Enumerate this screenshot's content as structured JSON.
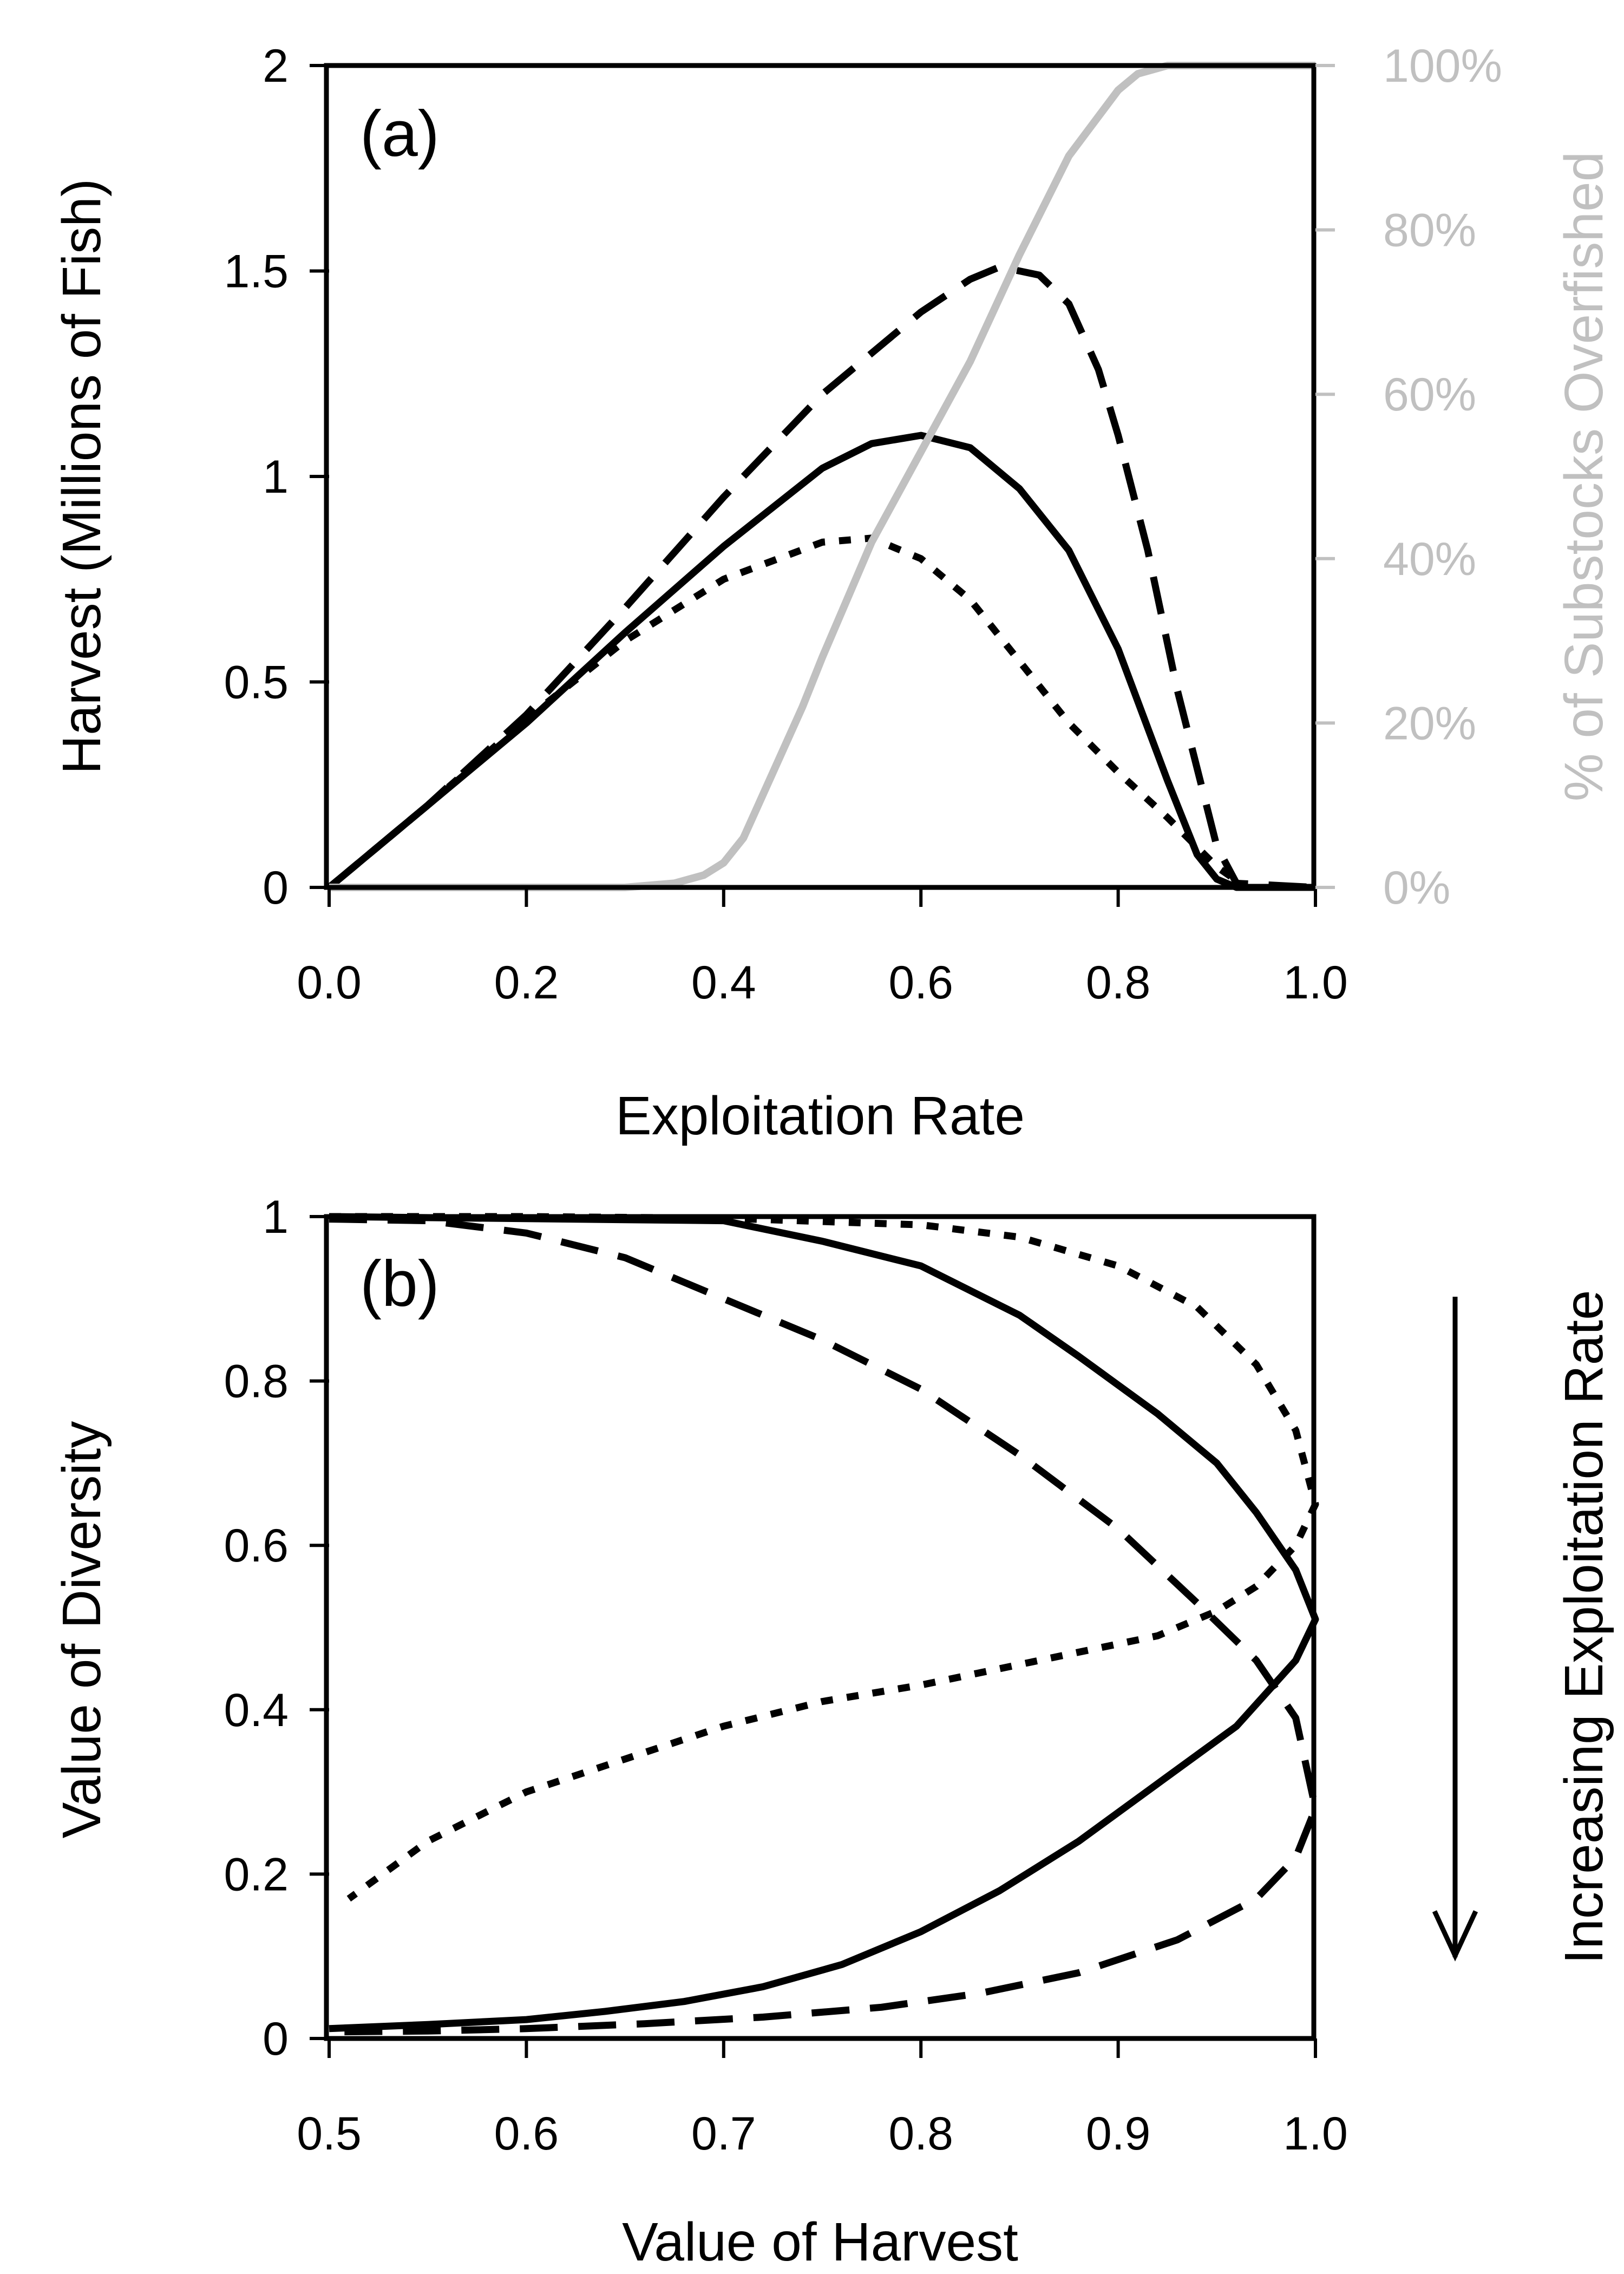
{
  "chart_data": [
    {
      "type": "line",
      "panel_label": "(a)",
      "xlabel": "Exploitation Rate",
      "ylabel": "Harvest (Millions of Fish)",
      "y2label": "% of Substocks Overfished",
      "xlim": [
        0,
        1
      ],
      "ylim": [
        0,
        2
      ],
      "y2lim": [
        0,
        100
      ],
      "x_tick_labels": [
        "0.0",
        "0.2",
        "0.4",
        "0.6",
        "0.8",
        "1.0"
      ],
      "y_tick_labels": [
        "0",
        "0.5",
        "1",
        "1.5",
        "2"
      ],
      "y2_tick_labels": [
        "0%",
        "20%",
        "40%",
        "60%",
        "80%",
        "100%"
      ],
      "grid": false,
      "colors": {
        "harvest": "#000000",
        "overfished": "#c0c0c0"
      },
      "series": [
        {
          "style": "solid",
          "axis": "left",
          "x": [
            0.0,
            0.1,
            0.2,
            0.3,
            0.4,
            0.5,
            0.55,
            0.6,
            0.65,
            0.7,
            0.75,
            0.8,
            0.85,
            0.88,
            0.9,
            0.92,
            0.93,
            1.0
          ],
          "y": [
            0.0,
            0.2,
            0.4,
            0.62,
            0.83,
            1.02,
            1.08,
            1.1,
            1.07,
            0.97,
            0.82,
            0.58,
            0.26,
            0.08,
            0.02,
            0.0,
            0.0,
            0.0
          ]
        },
        {
          "style": "dashed",
          "axis": "left",
          "x": [
            0.0,
            0.1,
            0.2,
            0.3,
            0.4,
            0.5,
            0.6,
            0.65,
            0.68,
            0.72,
            0.75,
            0.78,
            0.8,
            0.83,
            0.86,
            0.9,
            0.92,
            1.0
          ],
          "y": [
            0.0,
            0.2,
            0.42,
            0.68,
            0.95,
            1.2,
            1.4,
            1.48,
            1.51,
            1.49,
            1.42,
            1.26,
            1.1,
            0.82,
            0.48,
            0.1,
            0.01,
            0.0
          ]
        },
        {
          "style": "dotted",
          "axis": "left",
          "x": [
            0.0,
            0.1,
            0.2,
            0.3,
            0.4,
            0.5,
            0.55,
            0.6,
            0.65,
            0.7,
            0.75,
            0.8,
            0.85,
            0.9,
            0.93,
            1.0
          ],
          "y": [
            0.0,
            0.2,
            0.41,
            0.6,
            0.75,
            0.84,
            0.85,
            0.8,
            0.7,
            0.55,
            0.4,
            0.28,
            0.17,
            0.05,
            0.0,
            0.0
          ]
        },
        {
          "style": "solid",
          "axis": "right",
          "color": "#c0c0c0",
          "x": [
            0.0,
            0.3,
            0.35,
            0.38,
            0.4,
            0.42,
            0.45,
            0.48,
            0.5,
            0.55,
            0.6,
            0.65,
            0.7,
            0.75,
            0.8,
            0.82,
            0.85,
            1.0
          ],
          "y": [
            0,
            0,
            0.5,
            1.5,
            3,
            6,
            14,
            22,
            28,
            42,
            53,
            64,
            77,
            89,
            97,
            99,
            100,
            100
          ]
        }
      ]
    },
    {
      "type": "line",
      "panel_label": "(b)",
      "xlabel": "Value of Harvest",
      "ylabel": "Value of Diversity",
      "side_label": "Increasing Exploitation Rate",
      "xlim": [
        0.5,
        1.0
      ],
      "ylim": [
        0,
        1
      ],
      "x_tick_labels": [
        "0.5",
        "0.6",
        "0.7",
        "0.8",
        "0.9",
        "1.0"
      ],
      "y_tick_labels": [
        "0",
        "0.2",
        "0.4",
        "0.6",
        "0.8",
        "1"
      ],
      "grid": false,
      "series": [
        {
          "style": "solid",
          "x": [
            0.5,
            0.7,
            0.75,
            0.8,
            0.85,
            0.88,
            0.92,
            0.95,
            0.97,
            0.99,
            1.0,
            0.99,
            0.96,
            0.92,
            0.88,
            0.84,
            0.8,
            0.76,
            0.72,
            0.68,
            0.64,
            0.6,
            0.55,
            0.5
          ],
          "y": [
            1.0,
            0.995,
            0.97,
            0.94,
            0.88,
            0.83,
            0.76,
            0.7,
            0.64,
            0.57,
            0.51,
            0.46,
            0.38,
            0.31,
            0.24,
            0.18,
            0.13,
            0.09,
            0.063,
            0.045,
            0.033,
            0.023,
            0.017,
            0.012
          ]
        },
        {
          "style": "dashed",
          "x": [
            0.5,
            0.55,
            0.6,
            0.65,
            0.7,
            0.75,
            0.8,
            0.85,
            0.9,
            0.94,
            0.97,
            0.99,
            1.0,
            0.99,
            0.97,
            0.93,
            0.88,
            0.83,
            0.78,
            0.72,
            0.66,
            0.6,
            0.55,
            0.5
          ],
          "y": [
            0.997,
            0.995,
            0.98,
            0.95,
            0.9,
            0.85,
            0.79,
            0.71,
            0.62,
            0.53,
            0.46,
            0.39,
            0.28,
            0.22,
            0.17,
            0.12,
            0.08,
            0.055,
            0.038,
            0.026,
            0.018,
            0.012,
            0.009,
            0.008
          ]
        },
        {
          "style": "dotted",
          "x": [
            0.5,
            0.6,
            0.7,
            0.8,
            0.85,
            0.9,
            0.94,
            0.97,
            0.99,
            1.0,
            0.99,
            0.97,
            0.95,
            0.92,
            0.88,
            0.84,
            0.8,
            0.75,
            0.7,
            0.65,
            0.6,
            0.55,
            0.51
          ],
          "y": [
            1.0,
            1.0,
            0.998,
            0.99,
            0.975,
            0.94,
            0.89,
            0.82,
            0.74,
            0.65,
            0.6,
            0.55,
            0.52,
            0.49,
            0.47,
            0.45,
            0.43,
            0.41,
            0.38,
            0.34,
            0.3,
            0.24,
            0.17
          ]
        }
      ]
    }
  ]
}
